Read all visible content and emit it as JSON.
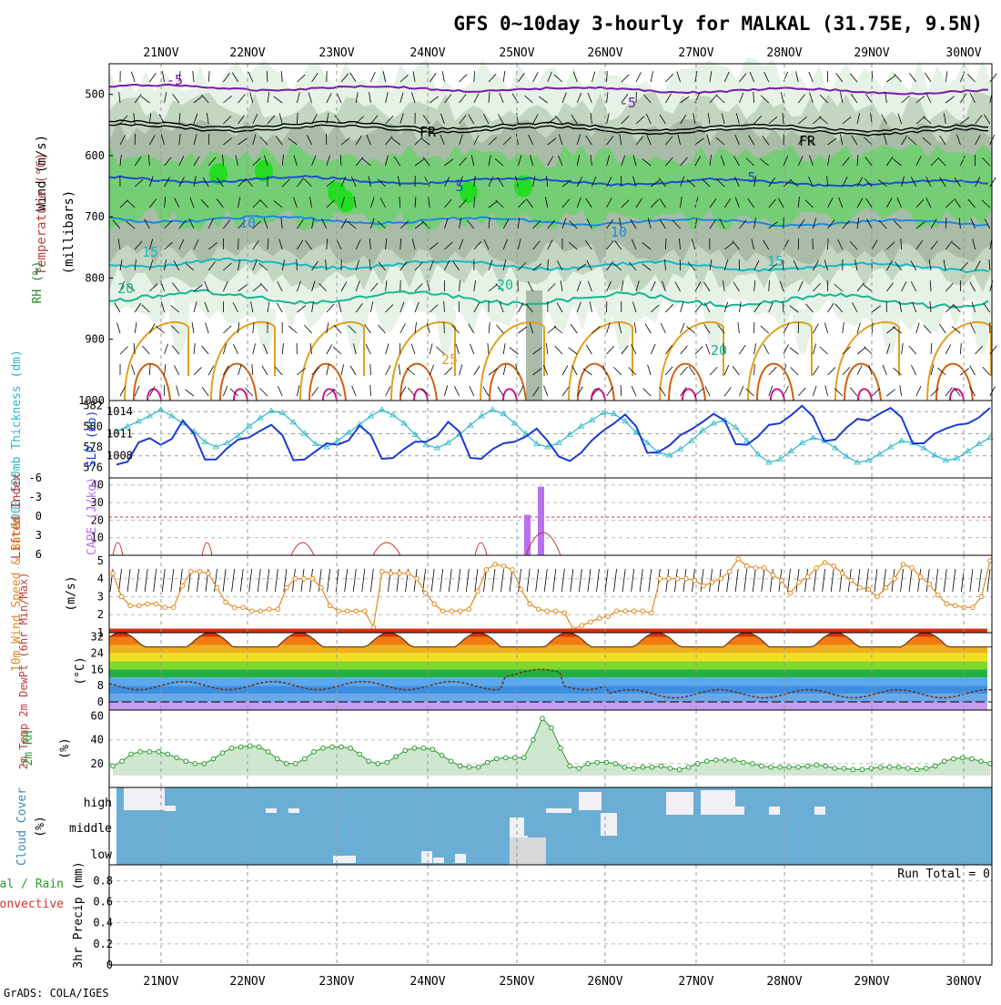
{
  "title": "GFS 0~10day 3-hourly for MALKAL (31.75E, 9.5N)",
  "credit": "GrADS: COLA/IGES",
  "dates": [
    "21NOV",
    "22NOV",
    "23NOV",
    "24NOV",
    "25NOV",
    "26NOV",
    "27NOV",
    "28NOV",
    "29NOV",
    "30NOV"
  ],
  "colors": {
    "rh_light": "#e6f2e6",
    "rh_mid": "#c2d6c2",
    "rh_dark": "#a8bca8",
    "rh_green": "#6fcf6f",
    "rh_bright": "#22dd22",
    "slp": "#1a3ad1",
    "thick": "#2ab8c8",
    "li": "#d03030",
    "cape": "#b870f0",
    "wind": "#e08a20",
    "rh2m": "#2a9a2a",
    "cloud_bg": "#6aaed6",
    "cloud": "#f0f0f5"
  },
  "panels": {
    "upper": {
      "ylabel_segments": [
        "RH (%)",
        "Temperature (°C)",
        "Wind (m/s)"
      ],
      "yunit": "(millibars)",
      "yticks": [
        "500",
        "600",
        "700",
        "800",
        "900",
        "1000"
      ],
      "contour_labels": [
        "-5",
        "-5",
        "FR",
        "FR",
        "5",
        "5",
        "10",
        "10",
        "15",
        "15",
        "20",
        "20",
        "20",
        "25"
      ]
    },
    "slp": {
      "ylabel_left": "1000-500mb Thickness (dm)",
      "ylabel_right": "SLP (mb)",
      "thick_ticks": [
        "582",
        "580",
        "578",
        "576"
      ],
      "slp_ticks": [
        "1014",
        "1011",
        "1008"
      ]
    },
    "cape": {
      "ylabel_left": "Lifted Index",
      "ylabel_right": "CAPE (J/kg)",
      "li_ticks": [
        "-6",
        "-3",
        "0",
        "3",
        "6"
      ],
      "cape_ticks": [
        "40",
        "30",
        "20",
        "10"
      ]
    },
    "wind": {
      "ylabel": "10m Wind Speed & Barbs",
      "yunit": "(m/s)",
      "yticks": [
        "5",
        "4",
        "3",
        "2",
        "1"
      ]
    },
    "temp": {
      "ylabel": "2m Temp 2m DewPt (6hr Min/Max)",
      "yunit": "(°C)",
      "yticks": [
        "32",
        "24",
        "16",
        "8",
        "0"
      ]
    },
    "rh": {
      "ylabel": "2m RH",
      "yunit": "(%)",
      "yticks": [
        "60",
        "40",
        "20"
      ]
    },
    "cloud": {
      "ylabel": "Cloud Cover",
      "yunit": "(%)",
      "levels": [
        "high",
        "middle",
        "low"
      ]
    },
    "precip": {
      "ylabel_left": "Total / Rain",
      "ylabel_left2": "Convective",
      "ylabel": "3hr Precip (mm)",
      "yticks": [
        "0.8",
        "0.6",
        "0.4",
        "0.2",
        "0"
      ],
      "run_total": "Run Total = 0"
    }
  },
  "chart_data": [
    {
      "type": "line",
      "title": "SLP (mb)",
      "x_unit": "3-hourly steps from 20NOV 12Z",
      "series": [
        {
          "name": "SLP (mb)",
          "values": [
            1006.8,
            1007.2,
            1009.8,
            1010.4,
            1009.5,
            1010.3,
            1012.8,
            1011.0,
            1007.5,
            1007.5,
            1009.0,
            1010.2,
            1010.5,
            1011.4,
            1012.2,
            1010.8,
            1007.4,
            1007.5,
            1008.6,
            1009.7,
            1009.5,
            1010.1,
            1012.1,
            1010.8,
            1007.6,
            1007.7,
            1008.9,
            1009.9,
            1009.9,
            1010.7,
            1012.6,
            1011.3,
            1007.7,
            1007.6,
            1008.9,
            1009.7,
            1009.9,
            1010.6,
            1011.7,
            1010.0,
            1007.9,
            1007.3,
            1008.4,
            1010.1,
            1011.4,
            1012.4,
            1013.6,
            1012.0,
            1008.4,
            1008.5,
            1009.4,
            1010.8,
            1011.6,
            1012.6,
            1013.7,
            1012.8,
            1009.6,
            1009.5,
            1010.6,
            1012.2,
            1012.4,
            1013.5,
            1014.8,
            1013.3,
            1010.0,
            1010.2,
            1011.8,
            1013.0,
            1012.8,
            1013.7,
            1014.5,
            1013.2,
            1009.7,
            1009.7,
            1011.0,
            1011.7,
            1012.2,
            1012.4,
            1013.2,
            1014.5
          ]
        },
        {
          "name": "1000-500mb Thickness (dm)",
          "values": [
            579.5,
            580.0,
            580.5,
            581.0,
            581.6,
            581.0,
            580.3,
            579.5,
            578.5,
            578.0,
            578.4,
            579.1,
            580.0,
            580.8,
            581.5,
            581.3,
            580.4,
            579.3,
            578.3,
            578.0,
            578.6,
            579.4,
            580.2,
            581.0,
            581.6,
            581.1,
            580.3,
            579.2,
            578.2,
            577.9,
            578.4,
            579.2,
            580.1,
            581.0,
            581.6,
            581.2,
            580.3,
            579.3,
            578.3,
            578.0,
            578.4,
            579.2,
            580.0,
            580.6,
            581.3,
            581.2,
            580.5,
            579.4,
            578.4,
            577.5,
            577.2,
            577.8,
            578.6,
            579.6,
            580.3,
            580.6,
            579.9,
            578.6,
            577.3,
            576.5,
            576.8,
            577.6,
            578.4,
            578.9,
            578.6,
            577.9,
            577.1,
            576.5,
            576.7,
            577.3,
            578.0,
            578.6,
            578.4,
            577.9,
            577.2,
            576.7,
            576.9,
            577.6,
            578.3,
            578.9
          ]
        }
      ]
    },
    {
      "type": "bar",
      "title": "CAPE (J/kg)",
      "categories": [
        "25NOV 03Z",
        "25NOV 06Z"
      ],
      "values": [
        23,
        39
      ]
    },
    {
      "type": "line",
      "title": "10m Wind Speed (m/s)",
      "series": [
        {
          "name": "10m Wind Speed",
          "values": [
            4.3,
            3.0,
            2.5,
            2.5,
            2.6,
            2.6,
            2.4,
            2.4,
            3.6,
            4.4,
            4.4,
            4.3,
            3.5,
            2.7,
            2.4,
            2.4,
            2.2,
            2.2,
            2.3,
            2.3,
            3.5,
            4.0,
            4.0,
            4.0,
            3.5,
            2.5,
            2.2,
            2.2,
            2.2,
            2.2,
            1.3,
            4.4,
            4.3,
            4.3,
            4.3,
            4.0,
            3.2,
            2.6,
            2.2,
            2.2,
            2.2,
            2.3,
            3.3,
            4.5,
            4.8,
            4.7,
            4.5,
            3.4,
            2.6,
            2.3,
            2.2,
            2.2,
            2.1,
            1.2,
            1.4,
            1.6,
            1.8,
            1.9,
            2.2,
            2.2,
            2.2,
            2.2,
            2.1,
            4.0,
            4.0,
            4.0,
            4.0,
            3.9,
            3.6,
            3.8,
            4.0,
            4.4,
            5.1,
            4.7,
            4.6,
            4.6,
            4.2,
            3.9,
            3.2,
            3.8,
            4.1,
            4.6,
            4.9,
            4.7,
            4.3,
            3.9,
            3.5,
            3.4,
            3.0,
            3.5,
            4.0,
            4.8,
            4.6,
            4.1,
            3.7,
            3.1,
            2.6,
            2.5,
            2.4,
            2.4,
            3.0,
            5.0
          ]
        }
      ]
    },
    {
      "type": "line",
      "title": "2m RH (%)",
      "series": [
        {
          "name": "2m RH",
          "values": [
            18,
            22,
            28,
            30,
            30,
            30,
            28,
            25,
            22,
            20,
            20,
            24,
            29,
            33,
            34,
            35,
            34,
            30,
            24,
            20,
            20,
            24,
            30,
            33,
            34,
            34,
            33,
            28,
            22,
            20,
            21,
            26,
            31,
            33,
            33,
            32,
            27,
            22,
            18,
            17,
            17,
            21,
            24,
            25,
            25,
            25,
            40,
            58,
            50,
            33,
            18,
            16,
            20,
            21,
            21,
            20,
            17,
            16,
            17,
            17,
            18,
            16,
            15,
            17,
            20,
            22,
            23,
            23,
            23,
            21,
            20,
            18,
            17,
            17,
            17,
            17,
            18,
            19,
            18,
            16,
            16,
            15,
            15,
            16,
            17,
            17,
            17,
            16,
            15,
            16,
            18,
            22,
            24,
            25,
            24,
            22,
            20
          ]
        }
      ]
    }
  ]
}
